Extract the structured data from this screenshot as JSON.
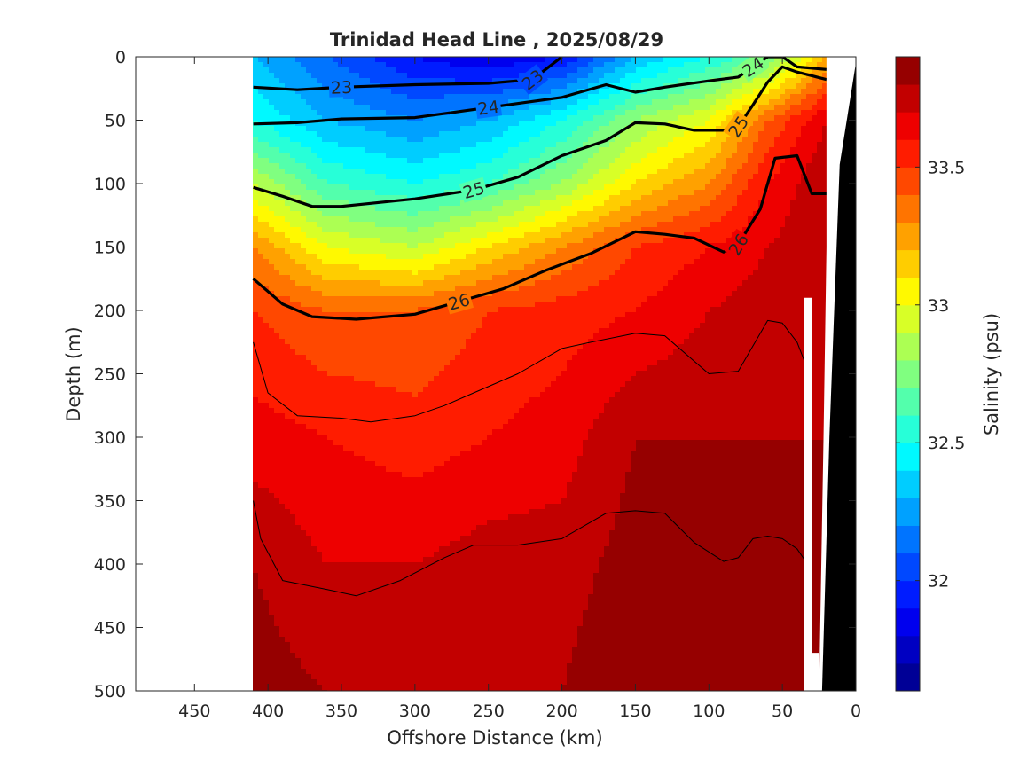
{
  "chart_data": {
    "type": "contour",
    "title": "Trinidad Head Line , 2025/08/29",
    "xlabel": "Offshore Distance (km)",
    "ylabel": "Depth (m)",
    "colorbar_label": "Salinity (psu)",
    "x_reversed": true,
    "y_reversed": true,
    "xlim": [
      0,
      490
    ],
    "ylim": [
      0,
      500
    ],
    "x_ticks": [
      "450",
      "400",
      "350",
      "300",
      "250",
      "200",
      "150",
      "100",
      "50",
      "0"
    ],
    "y_ticks": [
      "0",
      "50",
      "100",
      "150",
      "200",
      "250",
      "300",
      "350",
      "400",
      "450",
      "500"
    ],
    "colorbar": {
      "colormap": "jet",
      "range": [
        31.6,
        33.9
      ],
      "levels": 23,
      "tick_labels": [
        "32",
        "32.5",
        "33",
        "33.5"
      ]
    },
    "section_extent_km": [
      20,
      410
    ],
    "salinity_field_x_km": [
      410,
      360,
      300,
      250,
      200,
      150,
      100,
      60,
      20
    ],
    "salinity_field_depth_m": [
      0,
      50,
      100,
      150,
      200,
      300,
      400,
      500
    ],
    "salinity_psu": [
      [
        32.3,
        32.1,
        31.9,
        31.8,
        31.9,
        32.3,
        32.5,
        32.7,
        33.2
      ],
      [
        32.5,
        32.3,
        32.2,
        32.3,
        32.5,
        32.8,
        33.0,
        33.4,
        33.7
      ],
      [
        32.9,
        32.6,
        32.5,
        32.6,
        32.8,
        33.1,
        33.3,
        33.6,
        33.8
      ],
      [
        33.3,
        33.0,
        32.9,
        33.1,
        33.3,
        33.5,
        33.6,
        33.7,
        33.8
      ],
      [
        33.5,
        33.4,
        33.4,
        33.5,
        33.55,
        33.6,
        33.7,
        33.75,
        33.8
      ],
      [
        33.65,
        33.6,
        33.55,
        33.6,
        33.65,
        33.8,
        33.8,
        33.8,
        33.8
      ],
      [
        33.8,
        33.7,
        33.7,
        33.75,
        33.75,
        33.85,
        33.85,
        33.8,
        33.85
      ],
      [
        33.85,
        33.8,
        33.8,
        33.8,
        33.8,
        33.9,
        33.85,
        33.85,
        33.85
      ]
    ],
    "density_contours": [
      {
        "label": "23",
        "bold": true,
        "x_km": [
          410,
          380,
          350,
          300,
          250,
          220,
          200
        ],
        "depth_m": [
          24,
          26,
          24,
          22,
          21,
          18,
          0
        ]
      },
      {
        "label": "24",
        "bold": true,
        "x_km": [
          410,
          380,
          350,
          300,
          250,
          200,
          170,
          150,
          130,
          100,
          80,
          70,
          60,
          50,
          40,
          20
        ],
        "depth_m": [
          53,
          52,
          49,
          48,
          40,
          32,
          22,
          28,
          24,
          19,
          16,
          8,
          0,
          0,
          8,
          10
        ]
      },
      {
        "label": "25",
        "bold": true,
        "x_km": [
          410,
          390,
          370,
          350,
          300,
          260,
          230,
          200,
          170,
          150,
          130,
          110,
          90,
          80,
          70,
          60,
          50,
          40,
          20
        ],
        "depth_m": [
          103,
          110,
          118,
          118,
          112,
          105,
          95,
          78,
          66,
          52,
          53,
          58,
          58,
          55,
          38,
          20,
          8,
          12,
          18
        ]
      },
      {
        "label": "26",
        "bold": true,
        "x_km": [
          410,
          390,
          370,
          340,
          300,
          270,
          240,
          210,
          180,
          150,
          130,
          110,
          90,
          80,
          65,
          55,
          40,
          30,
          20
        ],
        "depth_m": [
          175,
          195,
          205,
          207,
          203,
          193,
          183,
          168,
          155,
          138,
          140,
          143,
          154,
          148,
          120,
          80,
          78,
          108,
          108
        ]
      },
      {
        "label": "",
        "bold": false,
        "x_km": [
          410,
          400,
          380,
          350,
          330,
          300,
          280,
          260,
          230,
          200,
          180,
          150,
          130,
          110,
          100,
          80,
          60,
          50,
          40,
          30
        ],
        "depth_m": [
          225,
          265,
          283,
          285,
          288,
          283,
          275,
          265,
          250,
          230,
          225,
          218,
          220,
          240,
          250,
          248,
          208,
          210,
          225,
          255
        ]
      },
      {
        "label": "",
        "bold": false,
        "x_km": [
          410,
          405,
          390,
          360,
          340,
          310,
          280,
          260,
          230,
          200,
          170,
          150,
          130,
          110,
          90,
          80,
          70,
          60,
          50,
          40,
          30
        ],
        "depth_m": [
          350,
          380,
          413,
          420,
          425,
          413,
          395,
          385,
          385,
          380,
          360,
          358,
          360,
          383,
          398,
          395,
          380,
          378,
          380,
          388,
          405
        ]
      }
    ]
  }
}
